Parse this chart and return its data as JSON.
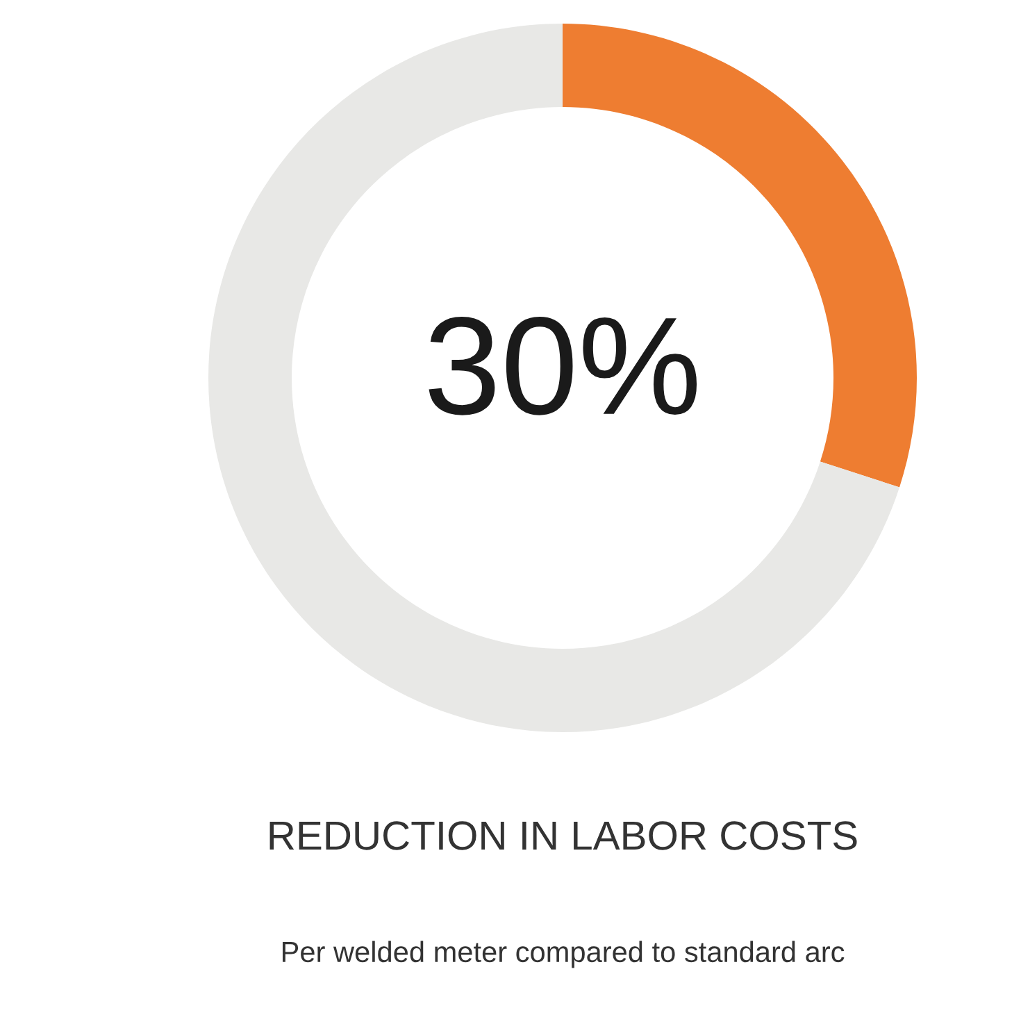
{
  "chart_data": {
    "type": "donut",
    "title": "REDUCTION IN LABOR COSTS",
    "annotations": [
      "Per welded meter compared to standard arc"
    ],
    "categories": [
      null,
      null
    ],
    "values": [
      30,
      70
    ],
    "colors": [
      "#ee7d31",
      "#e8e8e6"
    ],
    "value_labels": [
      "30%",
      null
    ]
  }
}
